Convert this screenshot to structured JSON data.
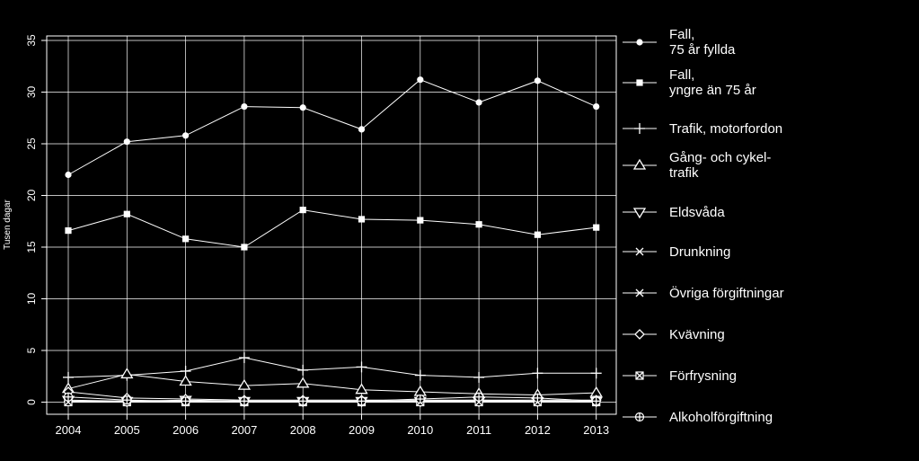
{
  "chart_data": {
    "type": "line",
    "ylabel": "Tusen dagar",
    "ylim": [
      0,
      35
    ],
    "yticks": [
      "0",
      "5",
      "10",
      "15",
      "20",
      "25",
      "30",
      "35"
    ],
    "x": [
      "2004",
      "2005",
      "2006",
      "2007",
      "2008",
      "2009",
      "2010",
      "2011",
      "2012",
      "2013"
    ],
    "grid": true,
    "legend_position": "right",
    "colors": {
      "background": "#000000",
      "foreground": "#ffffff"
    },
    "series": [
      {
        "name": "Fall,\n75 år fyllda",
        "marker": "circle",
        "values": [
          22.0,
          25.2,
          25.8,
          28.6,
          28.5,
          26.4,
          31.2,
          29.0,
          31.1,
          28.6
        ]
      },
      {
        "name": "Fall,\nyngre än 75 år",
        "marker": "square",
        "values": [
          16.6,
          18.2,
          15.8,
          15.0,
          18.6,
          17.7,
          17.6,
          17.2,
          16.2,
          16.9
        ]
      },
      {
        "name": "Trafik, motorfordon",
        "marker": "plus",
        "values": [
          2.4,
          2.6,
          3.0,
          4.3,
          3.1,
          3.4,
          2.6,
          2.4,
          2.8,
          2.8
        ]
      },
      {
        "name": "Gång- och cykel-\ntrafik",
        "marker": "triangle",
        "values": [
          1.3,
          2.7,
          2.0,
          1.6,
          1.8,
          1.2,
          1.0,
          0.8,
          0.7,
          0.9
        ]
      },
      {
        "name": "Eldsvåda",
        "marker": "triangle-down",
        "values": [
          0.2,
          0.1,
          0.2,
          0.1,
          0.1,
          0.1,
          0.1,
          0.1,
          0.1,
          0.1
        ]
      },
      {
        "name": "Drunkning",
        "marker": "x",
        "values": [
          0.1,
          0.1,
          0.1,
          0.1,
          0.1,
          0.1,
          0.1,
          0.2,
          0.1,
          0.1
        ]
      },
      {
        "name": "Övriga förgiftningar",
        "marker": "asterisk",
        "values": [
          0.1,
          0.1,
          0.1,
          0.1,
          0.1,
          0.1,
          0.1,
          0.1,
          0.1,
          0.1
        ]
      },
      {
        "name": "Kvävning",
        "marker": "diamond",
        "values": [
          1.0,
          0.4,
          0.3,
          0.2,
          0.2,
          0.2,
          0.2,
          0.2,
          0.2,
          0.2
        ]
      },
      {
        "name": "Förfrysning",
        "marker": "square-x",
        "values": [
          0.0,
          0.0,
          0.0,
          0.0,
          0.0,
          0.0,
          0.0,
          0.0,
          0.0,
          0.0
        ]
      },
      {
        "name": "Alkoholförgiftning",
        "marker": "circle-plus",
        "values": [
          0.5,
          0.2,
          0.1,
          0.1,
          0.1,
          0.1,
          0.3,
          0.5,
          0.4,
          0.1
        ]
      }
    ]
  }
}
